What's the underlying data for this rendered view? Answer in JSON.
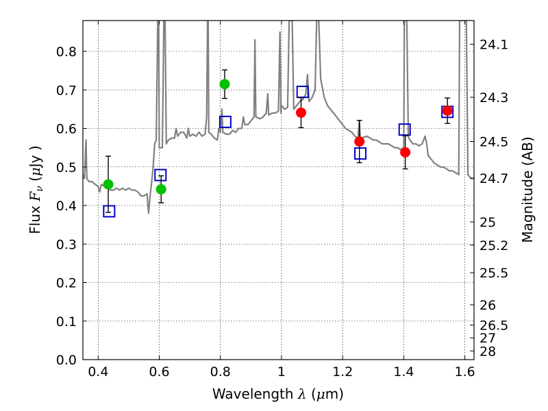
{
  "chart_data": {
    "type": "scatter",
    "xlabel_parts": [
      "Wavelength  ",
      "λ",
      " (",
      "μ",
      "m)"
    ],
    "ylabel_parts": [
      "Flux  ",
      "F",
      "ν",
      "  (",
      "μ",
      "Jy )"
    ],
    "y2label": "Magnitude (AB)",
    "xlim": [
      0.35,
      1.63
    ],
    "ylim": [
      0.0,
      0.88
    ],
    "xticks": [
      0.4,
      0.6,
      0.8,
      1.0,
      1.2,
      1.4,
      1.6
    ],
    "xtick_labels": [
      "0.4",
      "0.6",
      "0.8",
      "1",
      "1.2",
      "1.4",
      "1.6"
    ],
    "yticks": [
      0.0,
      0.1,
      0.2,
      0.3,
      0.4,
      0.5,
      0.6,
      0.7,
      0.8
    ],
    "ytick_labels": [
      "0.0",
      "0.1",
      "0.2",
      "0.3",
      "0.4",
      "0.5",
      "0.6",
      "0.7",
      "0.8"
    ],
    "y2ticks": [
      {
        "label": "24.1",
        "flux": 0.8185
      },
      {
        "label": "24.3",
        "flux": 0.6808
      },
      {
        "label": "24.5",
        "flux": 0.5662
      },
      {
        "label": "24.7",
        "flux": 0.471
      },
      {
        "label": "25",
        "flux": 0.3573
      },
      {
        "label": "25.2",
        "flux": 0.2972
      },
      {
        "label": "25.5",
        "flux": 0.2255
      },
      {
        "label": "26",
        "flux": 0.1422
      },
      {
        "label": "26.5",
        "flux": 0.0897
      },
      {
        "label": "27",
        "flux": 0.0566
      },
      {
        "label": "28",
        "flux": 0.0225
      }
    ],
    "grid": true,
    "colors": {
      "model": "#808080",
      "green": "#00c000",
      "red": "#ff0000",
      "square": "#0000cc",
      "errorbar": "#000000",
      "grid": "#000000"
    },
    "model_spectrum": [
      [
        0.35,
        0.48
      ],
      [
        0.355,
        0.47
      ],
      [
        0.36,
        0.57
      ],
      [
        0.363,
        0.47
      ],
      [
        0.37,
        0.462
      ],
      [
        0.38,
        0.462
      ],
      [
        0.39,
        0.455
      ],
      [
        0.4,
        0.45
      ],
      [
        0.405,
        0.435
      ],
      [
        0.41,
        0.455
      ],
      [
        0.42,
        0.45
      ],
      [
        0.43,
        0.445
      ],
      [
        0.44,
        0.44
      ],
      [
        0.45,
        0.44
      ],
      [
        0.46,
        0.445
      ],
      [
        0.47,
        0.44
      ],
      [
        0.48,
        0.445
      ],
      [
        0.49,
        0.44
      ],
      [
        0.5,
        0.445
      ],
      [
        0.51,
        0.44
      ],
      [
        0.52,
        0.44
      ],
      [
        0.53,
        0.435
      ],
      [
        0.54,
        0.425
      ],
      [
        0.55,
        0.425
      ],
      [
        0.56,
        0.43
      ],
      [
        0.565,
        0.38
      ],
      [
        0.57,
        0.425
      ],
      [
        0.575,
        0.46
      ],
      [
        0.58,
        0.5
      ],
      [
        0.585,
        0.56
      ],
      [
        0.59,
        0.57
      ],
      [
        0.595,
        0.88
      ],
      [
        0.598,
        0.88
      ],
      [
        0.6,
        0.55
      ],
      [
        0.61,
        0.55
      ],
      [
        0.615,
        0.88
      ],
      [
        0.619,
        0.88
      ],
      [
        0.623,
        0.56
      ],
      [
        0.63,
        0.57
      ],
      [
        0.64,
        0.575
      ],
      [
        0.65,
        0.575
      ],
      [
        0.655,
        0.6
      ],
      [
        0.66,
        0.58
      ],
      [
        0.67,
        0.59
      ],
      [
        0.68,
        0.59
      ],
      [
        0.69,
        0.575
      ],
      [
        0.695,
        0.6
      ],
      [
        0.7,
        0.58
      ],
      [
        0.71,
        0.585
      ],
      [
        0.72,
        0.58
      ],
      [
        0.73,
        0.59
      ],
      [
        0.74,
        0.58
      ],
      [
        0.75,
        0.585
      ],
      [
        0.755,
        0.63
      ],
      [
        0.758,
        0.88
      ],
      [
        0.76,
        0.88
      ],
      [
        0.762,
        0.59
      ],
      [
        0.77,
        0.585
      ],
      [
        0.775,
        0.58
      ],
      [
        0.78,
        0.575
      ],
      [
        0.79,
        0.57
      ],
      [
        0.795,
        0.6
      ],
      [
        0.8,
        0.59
      ],
      [
        0.805,
        0.65
      ],
      [
        0.808,
        0.59
      ],
      [
        0.82,
        0.585
      ],
      [
        0.83,
        0.585
      ],
      [
        0.84,
        0.595
      ],
      [
        0.85,
        0.59
      ],
      [
        0.86,
        0.6
      ],
      [
        0.87,
        0.6
      ],
      [
        0.875,
        0.63
      ],
      [
        0.88,
        0.61
      ],
      [
        0.89,
        0.61
      ],
      [
        0.9,
        0.62
      ],
      [
        0.91,
        0.63
      ],
      [
        0.913,
        0.83
      ],
      [
        0.916,
        0.63
      ],
      [
        0.93,
        0.625
      ],
      [
        0.94,
        0.63
      ],
      [
        0.95,
        0.64
      ],
      [
        0.955,
        0.69
      ],
      [
        0.958,
        0.635
      ],
      [
        0.97,
        0.64
      ],
      [
        0.98,
        0.64
      ],
      [
        0.99,
        0.645
      ],
      [
        0.995,
        0.85
      ],
      [
        0.998,
        0.64
      ],
      [
        1.0,
        0.66
      ],
      [
        1.01,
        0.65
      ],
      [
        1.02,
        0.655
      ],
      [
        1.025,
        0.88
      ],
      [
        1.035,
        0.88
      ],
      [
        1.04,
        0.65
      ],
      [
        1.05,
        0.66
      ],
      [
        1.06,
        0.67
      ],
      [
        1.07,
        0.675
      ],
      [
        1.08,
        0.69
      ],
      [
        1.085,
        0.74
      ],
      [
        1.09,
        0.67
      ],
      [
        1.1,
        0.68
      ],
      [
        1.11,
        0.7
      ],
      [
        1.115,
        0.88
      ],
      [
        1.122,
        0.88
      ],
      [
        1.128,
        0.73
      ],
      [
        1.135,
        0.7
      ],
      [
        1.14,
        0.68
      ],
      [
        1.15,
        0.66
      ],
      [
        1.16,
        0.65
      ],
      [
        1.17,
        0.64
      ],
      [
        1.18,
        0.63
      ],
      [
        1.19,
        0.62
      ],
      [
        1.2,
        0.61
      ],
      [
        1.21,
        0.6
      ],
      [
        1.22,
        0.595
      ],
      [
        1.23,
        0.59
      ],
      [
        1.24,
        0.58
      ],
      [
        1.25,
        0.575
      ],
      [
        1.255,
        0.62
      ],
      [
        1.258,
        0.57
      ],
      [
        1.26,
        0.575
      ],
      [
        1.28,
        0.58
      ],
      [
        1.29,
        0.575
      ],
      [
        1.3,
        0.57
      ],
      [
        1.31,
        0.57
      ],
      [
        1.32,
        0.565
      ],
      [
        1.33,
        0.56
      ],
      [
        1.34,
        0.56
      ],
      [
        1.35,
        0.56
      ],
      [
        1.36,
        0.555
      ],
      [
        1.37,
        0.55
      ],
      [
        1.38,
        0.55
      ],
      [
        1.39,
        0.545
      ],
      [
        1.4,
        0.55
      ],
      [
        1.402,
        0.88
      ],
      [
        1.41,
        0.88
      ],
      [
        1.415,
        0.58
      ],
      [
        1.42,
        0.57
      ],
      [
        1.43,
        0.56
      ],
      [
        1.44,
        0.56
      ],
      [
        1.45,
        0.555
      ],
      [
        1.46,
        0.56
      ],
      [
        1.47,
        0.58
      ],
      [
        1.475,
        0.56
      ],
      [
        1.48,
        0.53
      ],
      [
        1.49,
        0.52
      ],
      [
        1.5,
        0.51
      ],
      [
        1.51,
        0.505
      ],
      [
        1.52,
        0.5
      ],
      [
        1.53,
        0.5
      ],
      [
        1.54,
        0.495
      ],
      [
        1.55,
        0.49
      ],
      [
        1.56,
        0.49
      ],
      [
        1.57,
        0.485
      ],
      [
        1.58,
        0.48
      ],
      [
        1.583,
        0.88
      ],
      [
        1.59,
        0.88
      ],
      [
        1.6,
        0.88
      ],
      [
        1.605,
        0.88
      ],
      [
        1.61,
        0.48
      ],
      [
        1.62,
        0.47
      ],
      [
        1.63,
        0.47
      ]
    ],
    "green_points": [
      {
        "x": 0.433,
        "y": 0.455,
        "yerr": 0.073
      },
      {
        "x": 0.606,
        "y": 0.442,
        "yerr": 0.035
      },
      {
        "x": 0.814,
        "y": 0.715,
        "yerr": 0.037
      }
    ],
    "red_points": [
      {
        "x": 1.064,
        "y": 0.641,
        "yerr": 0.039
      },
      {
        "x": 1.255,
        "y": 0.566,
        "yerr": 0.055
      },
      {
        "x": 1.405,
        "y": 0.538,
        "yerr": 0.043
      },
      {
        "x": 1.543,
        "y": 0.646,
        "yerr": 0.033
      }
    ],
    "model_photometry": [
      {
        "x": 0.436,
        "y": 0.385
      },
      {
        "x": 0.604,
        "y": 0.479
      },
      {
        "x": 0.816,
        "y": 0.617
      },
      {
        "x": 1.069,
        "y": 0.695
      },
      {
        "x": 1.258,
        "y": 0.535
      },
      {
        "x": 1.403,
        "y": 0.597
      },
      {
        "x": 1.543,
        "y": 0.643
      }
    ]
  }
}
